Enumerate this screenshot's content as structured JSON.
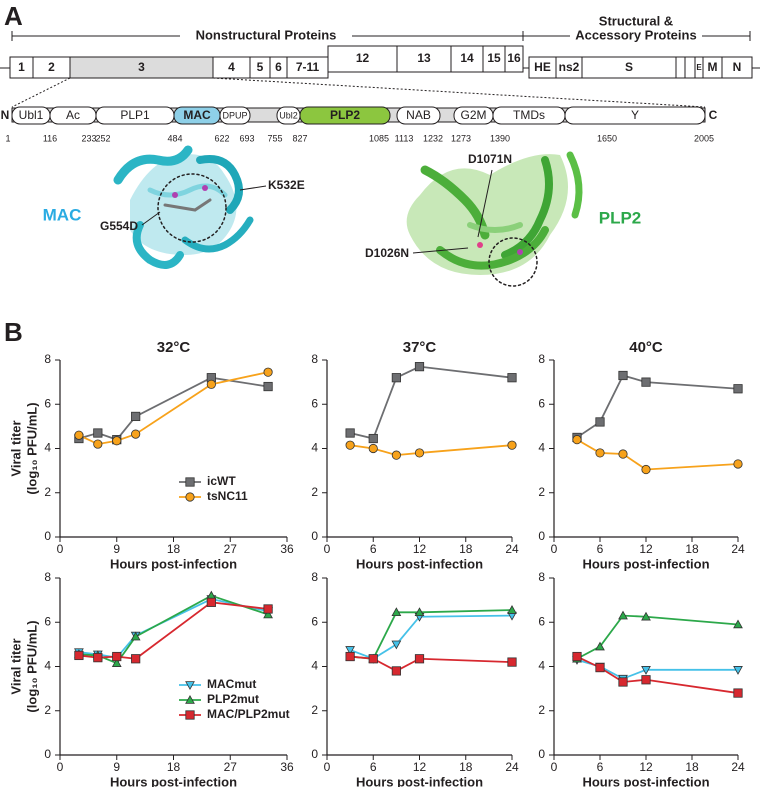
{
  "diagram": {
    "panel_a": "A",
    "panel_b": "B",
    "header_left": "Nonstructural Proteins",
    "header_right": [
      "Structural &",
      "Accessory Proteins"
    ],
    "genome": [
      "1",
      "2",
      "3",
      "4",
      "5",
      "6",
      "7-11",
      "12",
      "13",
      "14",
      "15",
      "16",
      "HE",
      "ns2",
      "S",
      "E",
      "M",
      "N"
    ],
    "n_term": "N",
    "c_term": "C",
    "domains": [
      "Ubl1",
      "Ac",
      "PLP1",
      "MAC",
      "DPUP",
      "Ubl2",
      "PLP2",
      "NAB",
      "G2M",
      "TMDs",
      "Y"
    ],
    "positions": [
      1,
      116,
      233,
      252,
      484,
      622,
      693,
      755,
      827,
      1085,
      1113,
      1232,
      1273,
      1390,
      1650,
      2005
    ],
    "structures": [
      "MAC",
      "PLP2"
    ],
    "mutations": [
      "K532E",
      "G554D",
      "D1071N",
      "D1026N"
    ]
  },
  "chart_data": [
    {
      "type": "line",
      "title": "32°C",
      "xlabel": "Hours post-infection",
      "ylabel": [
        "Viral titer",
        "(log₁₀ PFU/mL)"
      ],
      "x": [
        3,
        6,
        9,
        12,
        24,
        33
      ],
      "xlim": [
        0,
        36
      ],
      "xticks": [
        0,
        9,
        18,
        27,
        36
      ],
      "ylim": [
        0,
        8
      ],
      "yticks": [
        0,
        2,
        4,
        6,
        8
      ],
      "legend": "lower right",
      "series": [
        {
          "name": "icWT",
          "color": "#6d6e71",
          "marker": "square",
          "values": [
            4.45,
            4.7,
            4.4,
            5.45,
            7.2,
            6.8
          ]
        },
        {
          "name": "tsNC11",
          "color": "#f7a21b",
          "marker": "circle",
          "values": [
            4.6,
            4.2,
            4.35,
            4.65,
            6.9,
            7.45
          ]
        }
      ]
    },
    {
      "type": "line",
      "title": "37°C",
      "xlabel": "Hours post-infection",
      "x": [
        3,
        6,
        9,
        12,
        24
      ],
      "xlim": [
        0,
        24
      ],
      "xticks": [
        0,
        6,
        12,
        18,
        24
      ],
      "ylim": [
        0,
        8
      ],
      "yticks": [
        0,
        2,
        4,
        6,
        8
      ],
      "series": [
        {
          "color": "#6d6e71",
          "marker": "square",
          "values": [
            4.7,
            4.45,
            7.2,
            7.7,
            7.2
          ]
        },
        {
          "color": "#f7a21b",
          "marker": "circle",
          "values": [
            4.15,
            4.0,
            3.7,
            3.8,
            4.15
          ]
        }
      ]
    },
    {
      "type": "line",
      "title": "40°C",
      "xlabel": "Hours post-infection",
      "x": [
        3,
        6,
        9,
        12,
        24
      ],
      "xlim": [
        0,
        24
      ],
      "xticks": [
        0,
        6,
        12,
        18,
        24
      ],
      "ylim": [
        0,
        8
      ],
      "yticks": [
        0,
        2,
        4,
        6,
        8
      ],
      "series": [
        {
          "color": "#6d6e71",
          "marker": "square",
          "values": [
            4.5,
            5.2,
            7.3,
            7.0,
            6.7
          ]
        },
        {
          "color": "#f7a21b",
          "marker": "circle",
          "values": [
            4.4,
            3.8,
            3.75,
            3.05,
            3.3
          ]
        }
      ]
    },
    {
      "type": "line",
      "xlabel": "Hours post-infection",
      "ylabel": [
        "Viral titer",
        "(log₁₀ PFU/mL)"
      ],
      "x": [
        3,
        6,
        9,
        12,
        24,
        33
      ],
      "xlim": [
        0,
        36
      ],
      "xticks": [
        0,
        9,
        18,
        27,
        36
      ],
      "ylim": [
        0,
        8
      ],
      "yticks": [
        0,
        2,
        4,
        6,
        8
      ],
      "legend": "lower right",
      "series": [
        {
          "name": "MACmut",
          "color": "#45c1e8",
          "marker": "triangle-down",
          "values": [
            4.65,
            4.55,
            4.4,
            5.4,
            7.05,
            6.5
          ]
        },
        {
          "name": "PLP2mut",
          "color": "#2ca84a",
          "marker": "triangle-up",
          "values": [
            4.55,
            4.5,
            4.15,
            5.35,
            7.2,
            6.35
          ]
        },
        {
          "name": "MAC/PLP2mut",
          "color": "#d7282f",
          "marker": "square",
          "values": [
            4.5,
            4.4,
            4.45,
            4.35,
            6.9,
            6.6
          ]
        }
      ]
    },
    {
      "type": "line",
      "xlabel": "Hours post-infection",
      "x": [
        3,
        6,
        9,
        12,
        24
      ],
      "xlim": [
        0,
        24
      ],
      "xticks": [
        0,
        6,
        12,
        18,
        24
      ],
      "ylim": [
        0,
        8
      ],
      "yticks": [
        0,
        2,
        4,
        6,
        8
      ],
      "series": [
        {
          "color": "#45c1e8",
          "marker": "triangle-down",
          "values": [
            4.75,
            4.35,
            5.0,
            6.25,
            6.3
          ]
        },
        {
          "color": "#2ca84a",
          "marker": "triangle-up",
          "values": [
            4.45,
            4.35,
            6.45,
            6.45,
            6.55
          ]
        },
        {
          "color": "#d7282f",
          "marker": "square",
          "values": [
            4.45,
            4.35,
            3.8,
            4.35,
            4.2
          ]
        }
      ]
    },
    {
      "type": "line",
      "xlabel": "Hours post-infection",
      "x": [
        3,
        6,
        9,
        12,
        24
      ],
      "xlim": [
        0,
        24
      ],
      "xticks": [
        0,
        6,
        12,
        18,
        24
      ],
      "ylim": [
        0,
        8
      ],
      "yticks": [
        0,
        2,
        4,
        6,
        8
      ],
      "series": [
        {
          "color": "#45c1e8",
          "marker": "triangle-down",
          "values": [
            4.3,
            4.0,
            3.45,
            3.85,
            3.85
          ]
        },
        {
          "color": "#2ca84a",
          "marker": "triangle-up",
          "values": [
            4.35,
            4.9,
            6.3,
            6.25,
            5.9
          ]
        },
        {
          "color": "#d7282f",
          "marker": "square",
          "values": [
            4.45,
            3.95,
            3.3,
            3.4,
            2.8
          ]
        }
      ]
    }
  ]
}
